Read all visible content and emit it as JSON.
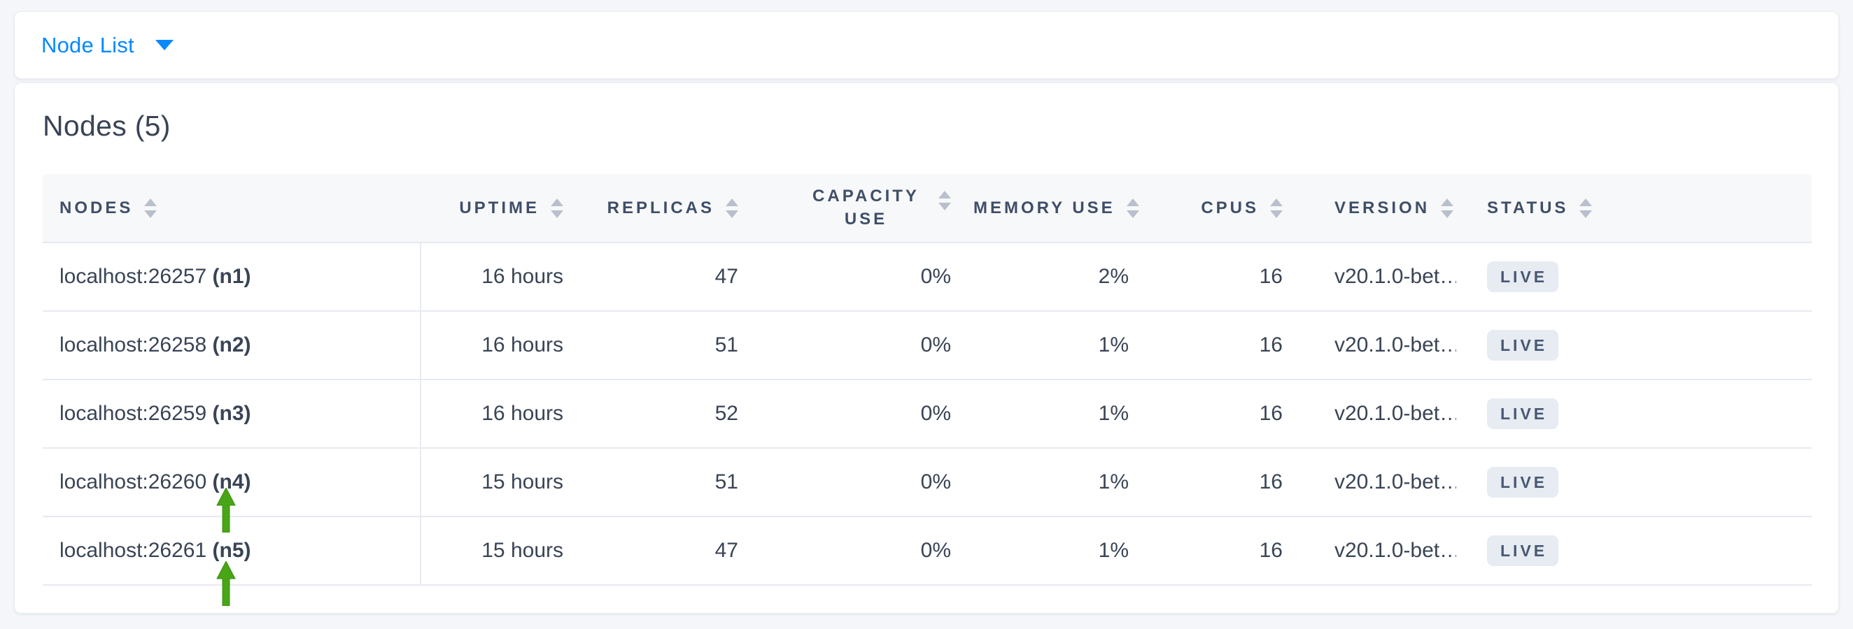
{
  "colors": {
    "accent_blue": "#0788ff",
    "text_dark": "#394455",
    "header_text": "#3f4e68",
    "badge_background": "#e7ebf2",
    "arrow_green": "#47a516",
    "page_background": "#f4f6fa",
    "row_border": "#e7eaf0"
  },
  "topbar": {
    "dropdown_label": "Node List"
  },
  "main": {
    "title": "Nodes (5)",
    "table": {
      "columns": [
        {
          "key": "node",
          "label": "NODES",
          "align": "left",
          "wrap": false,
          "sortable": true
        },
        {
          "key": "uptime",
          "label": "UPTIME",
          "align": "right",
          "wrap": false,
          "sortable": true
        },
        {
          "key": "replicas",
          "label": "REPLICAS",
          "align": "right",
          "wrap": false,
          "sortable": true
        },
        {
          "key": "capacity",
          "label": "CAPACITY USE",
          "align": "right",
          "wrap": true,
          "sortable": true
        },
        {
          "key": "memory",
          "label": "MEMORY USE",
          "align": "right",
          "wrap": false,
          "sortable": true
        },
        {
          "key": "cpus",
          "label": "CPUS",
          "align": "right",
          "wrap": false,
          "sortable": true
        },
        {
          "key": "version",
          "label": "VERSION",
          "align": "left",
          "wrap": false,
          "sortable": true
        },
        {
          "key": "status",
          "label": "STATUS",
          "align": "left",
          "wrap": false,
          "sortable": true
        }
      ],
      "rows": [
        {
          "address": "localhost:26257",
          "node_id": "(n1)",
          "uptime": "16 hours",
          "replicas": "47",
          "capacity": "0%",
          "memory": "2%",
          "cpus": "16",
          "version": "v20.1.0-bet…",
          "status": "LIVE"
        },
        {
          "address": "localhost:26258",
          "node_id": "(n2)",
          "uptime": "16 hours",
          "replicas": "51",
          "capacity": "0%",
          "memory": "1%",
          "cpus": "16",
          "version": "v20.1.0-bet…",
          "status": "LIVE"
        },
        {
          "address": "localhost:26259",
          "node_id": "(n3)",
          "uptime": "16 hours",
          "replicas": "52",
          "capacity": "0%",
          "memory": "1%",
          "cpus": "16",
          "version": "v20.1.0-bet…",
          "status": "LIVE"
        },
        {
          "address": "localhost:26260",
          "node_id": "(n4)",
          "uptime": "15 hours",
          "replicas": "51",
          "capacity": "0%",
          "memory": "1%",
          "cpus": "16",
          "version": "v20.1.0-bet…",
          "status": "LIVE"
        },
        {
          "address": "localhost:26261",
          "node_id": "(n5)",
          "uptime": "15 hours",
          "replicas": "47",
          "capacity": "0%",
          "memory": "1%",
          "cpus": "16",
          "version": "v20.1.0-bet…",
          "status": "LIVE"
        }
      ]
    }
  },
  "annotations": {
    "arrow_color": "#47a516",
    "arrows": [
      {
        "points_to": "localhost:26260 (n4)"
      },
      {
        "points_to": "localhost:26261 (n5)"
      }
    ]
  }
}
